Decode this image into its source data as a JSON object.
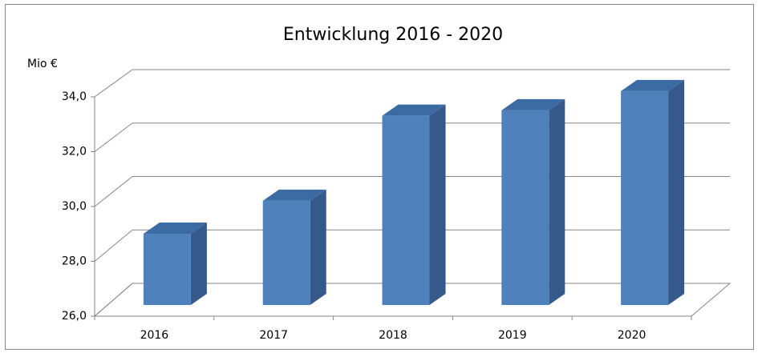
{
  "chart_data": {
    "type": "bar3d",
    "title": "Entwicklung 2016 - 2020",
    "y_axis_label": "Mio €",
    "categories": [
      "2016",
      "2017",
      "2018",
      "2019",
      "2020"
    ],
    "values": [
      28.6,
      29.8,
      32.9,
      33.1,
      33.8
    ],
    "color": "#4f81bd",
    "ylim": [
      26,
      34
    ],
    "yticks": [
      {
        "value": 26,
        "label": "26,0"
      },
      {
        "value": 28,
        "label": "28,0"
      },
      {
        "value": 30,
        "label": "30,0"
      },
      {
        "value": 32,
        "label": "32,0"
      },
      {
        "value": 34,
        "label": "34,0"
      }
    ],
    "grid": true
  }
}
